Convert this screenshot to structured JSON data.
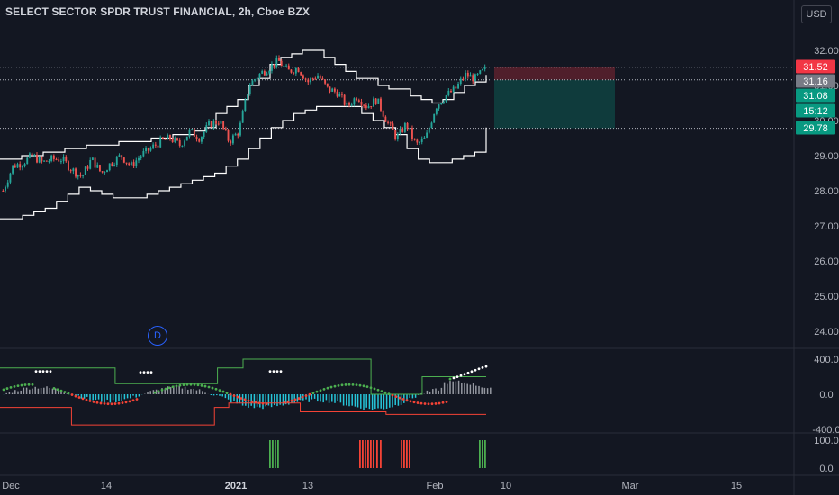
{
  "header": {
    "title": "SELECT SECTOR SPDR TRUST FINANCIAL, 2h, Cboe BZX",
    "currency_button": "USD"
  },
  "dividend_marker": "D",
  "colors": {
    "background": "#131722",
    "up": "#26a69a",
    "down": "#ef5350",
    "band": "#ffffff",
    "axis_text": "#b2b5be",
    "osc_green": "#4caf50",
    "osc_red": "#f44336",
    "hist_pos": "#9598a1",
    "hist_neg": "#26c6da",
    "bar_green": "#4caf50",
    "bar_red": "#f44336"
  },
  "price_labels": [
    {
      "value": "31.52",
      "bg": "#f23645",
      "fg": "#ffffff"
    },
    {
      "value": "31.16",
      "bg": "#787b86",
      "fg": "#ffffff"
    },
    {
      "value": "31.08",
      "bg": "#089981",
      "fg": "#ffffff"
    },
    {
      "value": "15:12",
      "bg": "#089981",
      "fg": "#ffffff"
    },
    {
      "value": "29.78",
      "bg": "#089981",
      "fg": "#ffffff"
    }
  ],
  "chart_data": [
    {
      "type": "candlestick",
      "title": "SELECT SECTOR SPDR TRUST FINANCIAL, 2h, Cboe BZX",
      "y_ticks": [
        "32.00",
        "31.00",
        "30.00",
        "29.00",
        "28.00",
        "27.00",
        "26.00",
        "25.00",
        "24.00"
      ],
      "ylim": [
        23.6,
        32.5
      ],
      "x_ticks": [
        "Dec",
        "14",
        "2021",
        "13",
        "Feb",
        "10",
        "Mar",
        "15"
      ],
      "close_path": [
        28.0,
        28.7,
        28.8,
        29.0,
        28.8,
        28.9,
        28.9,
        28.6,
        28.4,
        28.9,
        28.5,
        28.8,
        29.0,
        28.7,
        29.0,
        29.2,
        29.4,
        29.5,
        29.3,
        29.7,
        29.5,
        29.9,
        30.0,
        29.4,
        29.7,
        31.0,
        31.3,
        31.5,
        31.7,
        31.4,
        31.5,
        31.1,
        31.3,
        30.9,
        30.8,
        30.4,
        30.7,
        30.4,
        30.6,
        30.0,
        29.5,
        29.9,
        29.3,
        29.5,
        30.4,
        30.7,
        30.9,
        31.3,
        31.2,
        31.45
      ],
      "upper_band_path": [
        28.9,
        28.9,
        29.0,
        29.0,
        29.1,
        29.1,
        29.2,
        29.2,
        29.3,
        29.3,
        29.3,
        29.4,
        29.4,
        29.4,
        29.5,
        29.5,
        29.6,
        29.6,
        29.7,
        29.8,
        30.2,
        30.4,
        30.6,
        31.0,
        31.2,
        31.6,
        31.8,
        31.9,
        32.0,
        32.0,
        31.8,
        31.6,
        31.4,
        31.2,
        31.2,
        31.0,
        30.9,
        30.9,
        30.7,
        30.6,
        30.5,
        30.6,
        30.8,
        31.0,
        31.1,
        31.3
      ],
      "lower_band_path": [
        27.2,
        27.2,
        27.3,
        27.4,
        27.5,
        27.7,
        27.9,
        28.1,
        28.0,
        27.9,
        27.8,
        27.8,
        27.8,
        27.9,
        28.0,
        28.1,
        28.2,
        28.3,
        28.4,
        28.5,
        28.7,
        28.9,
        29.2,
        29.5,
        29.8,
        30.0,
        30.2,
        30.3,
        30.4,
        30.4,
        30.4,
        30.4,
        30.2,
        30.0,
        29.8,
        29.6,
        29.2,
        28.9,
        28.8,
        28.8,
        28.9,
        29.0,
        29.1,
        29.8
      ],
      "position_box": {
        "entry": 31.16,
        "stop": 31.52,
        "target": 29.78
      },
      "horizontal_lines": [
        31.52,
        31.16,
        29.78
      ]
    },
    {
      "type": "line",
      "name": "oscillator",
      "y_ticks": [
        "400.0",
        "0.0",
        "-400.0"
      ],
      "ylim": [
        -420,
        420
      ],
      "upper_line": [
        300,
        300,
        300,
        300,
        300,
        300,
        300,
        300,
        300,
        120,
        120,
        120,
        120,
        120,
        120,
        120,
        120,
        300,
        300,
        400,
        400,
        400,
        400,
        400,
        400,
        400,
        400,
        400,
        400,
        0,
        0,
        0,
        0,
        200,
        200,
        200,
        200,
        200,
        200
      ],
      "lower_line": [
        -150,
        -150,
        -150,
        -150,
        -150,
        -350,
        -350,
        -350,
        -350,
        -350,
        -350,
        -350,
        -350,
        -350,
        -350,
        -150,
        -100,
        -100,
        -100,
        -100,
        -100,
        -200,
        -200,
        -200,
        -200,
        -200,
        -200,
        -230,
        -230,
        -230,
        -230,
        -230,
        -230,
        -230,
        -230
      ]
    },
    {
      "type": "bar",
      "name": "signal",
      "y_ticks": [
        "100.0",
        "0.0"
      ],
      "ylim": [
        0,
        100
      ]
    }
  ]
}
